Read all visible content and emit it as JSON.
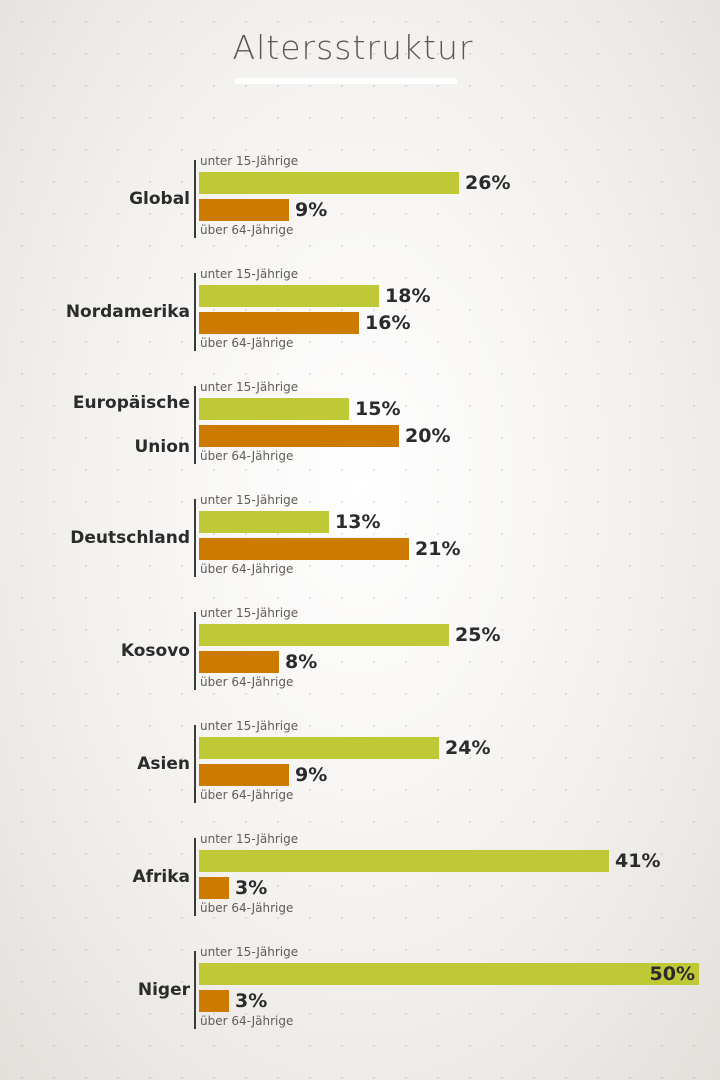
{
  "chart_data": {
    "type": "bar",
    "orientation": "horizontal",
    "title": "Altersstruktur",
    "categories": [
      "Global",
      "Nordamerika",
      "Europäische Union",
      "Deutschland",
      "Kosovo",
      "Asien",
      "Afrika",
      "Niger"
    ],
    "category_display": [
      "Global",
      "Nordamerika",
      "Europäische\nUnion",
      "Deutschland",
      "Kosovo",
      "Asien",
      "Afrika",
      "Niger"
    ],
    "unit": "%",
    "xlim": [
      0,
      50
    ],
    "series": [
      {
        "name": "unter 15-Jährige",
        "color": "#bfc935",
        "values": [
          26,
          18,
          15,
          13,
          25,
          24,
          41,
          50
        ]
      },
      {
        "name": "über 64-Jährige",
        "color": "#cc7a00",
        "values": [
          9,
          16,
          20,
          21,
          8,
          9,
          3,
          3
        ]
      }
    ],
    "value_labels": {
      "young": [
        "26%",
        "18%",
        "15%",
        "13%",
        "25%",
        "24%",
        "41%",
        "50%"
      ],
      "old": [
        "9%",
        "16%",
        "20%",
        "21%",
        "8%",
        "9%",
        "3%",
        "3%"
      ]
    },
    "grid": false,
    "legend": "inline-per-group"
  }
}
